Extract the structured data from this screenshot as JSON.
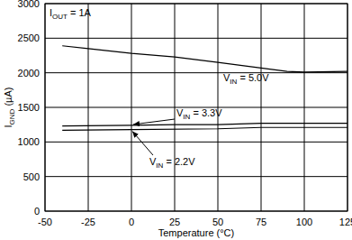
{
  "chart_data": {
    "type": "line",
    "x_label": "Temperature (°C)",
    "y_label": "IGND (µA)",
    "annotations": [
      "IOUT = 1A"
    ],
    "xlim": [
      -50,
      125
    ],
    "xticks": [
      -50,
      -25,
      0,
      25,
      50,
      75,
      100,
      125
    ],
    "ylim": [
      0,
      3000
    ],
    "yticks": [
      0,
      500,
      1000,
      1500,
      2000,
      2500,
      3000
    ],
    "grid": true,
    "series": [
      {
        "name": "VIN = 5.0V",
        "color": "#000000",
        "x": [
          -40,
          -25,
          0,
          25,
          50,
          75,
          90,
          100,
          125
        ],
        "values": [
          2390,
          2350,
          2280,
          2230,
          2150,
          2070,
          2020,
          2010,
          2020
        ]
      },
      {
        "name": "VIN = 3.3V",
        "color": "#000000",
        "x": [
          -40,
          0,
          25,
          50,
          75,
          125
        ],
        "values": [
          1230,
          1240,
          1250,
          1250,
          1270,
          1270
        ]
      },
      {
        "name": "VIN = 2.2V",
        "color": "#000000",
        "x": [
          -40,
          0,
          50,
          75,
          125
        ],
        "values": [
          1170,
          1180,
          1190,
          1210,
          1210
        ]
      }
    ]
  }
}
